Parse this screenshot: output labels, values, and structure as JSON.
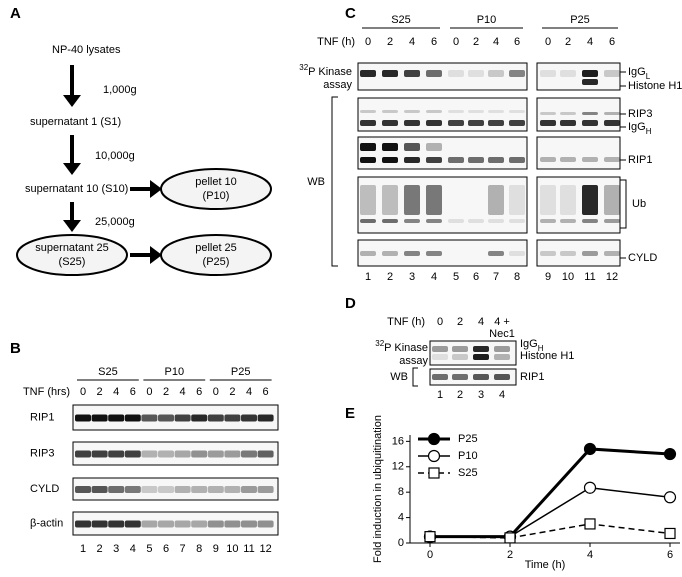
{
  "panel_a": {
    "label": "A",
    "lysate": "NP-40 lysates",
    "spin1": "1,000g",
    "s1": "supernatant 1 (S1)",
    "spin2": "10,000g",
    "s10": "supernatant 10 (S10)",
    "p10": [
      "pellet 10",
      "(P10)"
    ],
    "spin3": "25,000g",
    "s25": [
      "supernatant 25",
      "(S25)"
    ],
    "p25": [
      "pellet 25",
      "(P25)"
    ]
  },
  "panel_b": {
    "label": "B",
    "groups": [
      "S25",
      "P10",
      "P25"
    ],
    "treatment": "TNF (hrs)",
    "timepoints": [
      "0",
      "2",
      "4",
      "6",
      "0",
      "2",
      "4",
      "6",
      "0",
      "2",
      "4",
      "6"
    ],
    "blots": [
      "RIP1",
      "RIP3",
      "CYLD",
      "β-actin"
    ],
    "lanes": [
      "1",
      "2",
      "3",
      "4",
      "5",
      "6",
      "7",
      "8",
      "9",
      "10",
      "11",
      "12"
    ]
  },
  "panel_c": {
    "label": "C",
    "groups": [
      "S25",
      "P10",
      "P25"
    ],
    "treatment": "TNF (h)",
    "timepoints": [
      "0",
      "2",
      "4",
      "6",
      "0",
      "2",
      "4",
      "6",
      "0",
      "2",
      "4",
      "6"
    ],
    "assay": {
      "sup": "32",
      "text": "P Kinase",
      "line2": "assay"
    },
    "wb": "WB",
    "band_labels": [
      {
        "text": "IgG",
        "sub": "L"
      },
      {
        "text": "Histone H1"
      },
      {
        "text": "RIP3"
      },
      {
        "text": "IgG",
        "sub": "H"
      },
      {
        "text": "RIP1"
      },
      {
        "text": "Ub"
      },
      {
        "text": "CYLD"
      }
    ],
    "lanes": [
      "1",
      "2",
      "3",
      "4",
      "5",
      "6",
      "7",
      "8",
      "9",
      "10",
      "11",
      "12"
    ]
  },
  "panel_d": {
    "label": "D",
    "treatment": "TNF (h)",
    "conditions": [
      "0",
      "2",
      "4",
      "4 +"
    ],
    "inhibitor": "Nec1",
    "assay": {
      "sup": "32",
      "text": "P Kinase",
      "line2": "assay"
    },
    "wb": "WB",
    "band_labels": [
      {
        "text": "IgG",
        "sub": "H"
      },
      {
        "text": "Histone H1"
      },
      {
        "text": "RIP1"
      }
    ],
    "lanes": [
      "1",
      "2",
      "3",
      "4"
    ]
  },
  "chart_data": {
    "type": "line",
    "panel_label": "E",
    "x_label": "Time (h)",
    "y_label": "Fold induction in ubiquitination",
    "x": [
      0,
      2,
      4,
      6
    ],
    "xlim": [
      -0.5,
      6.25
    ],
    "xticks": [
      0,
      2,
      4,
      6
    ],
    "ylim": [
      0,
      17
    ],
    "yticks": [
      0,
      4,
      8,
      12,
      16
    ],
    "legend": "upper left",
    "series": [
      {
        "name": "P25",
        "color": "#000000",
        "marker": "circle",
        "filled": true,
        "dashed": false,
        "width": 3,
        "values": [
          1,
          1,
          14.8,
          14
        ]
      },
      {
        "name": "P10",
        "color": "#000000",
        "marker": "circle",
        "filled": false,
        "dashed": false,
        "width": 1.5,
        "values": [
          1,
          1,
          8.7,
          7.2
        ]
      },
      {
        "name": "S25",
        "color": "#000000",
        "marker": "square",
        "filled": false,
        "dashed": true,
        "width": 1.5,
        "values": [
          1,
          0.8,
          3,
          1.5
        ]
      }
    ]
  }
}
